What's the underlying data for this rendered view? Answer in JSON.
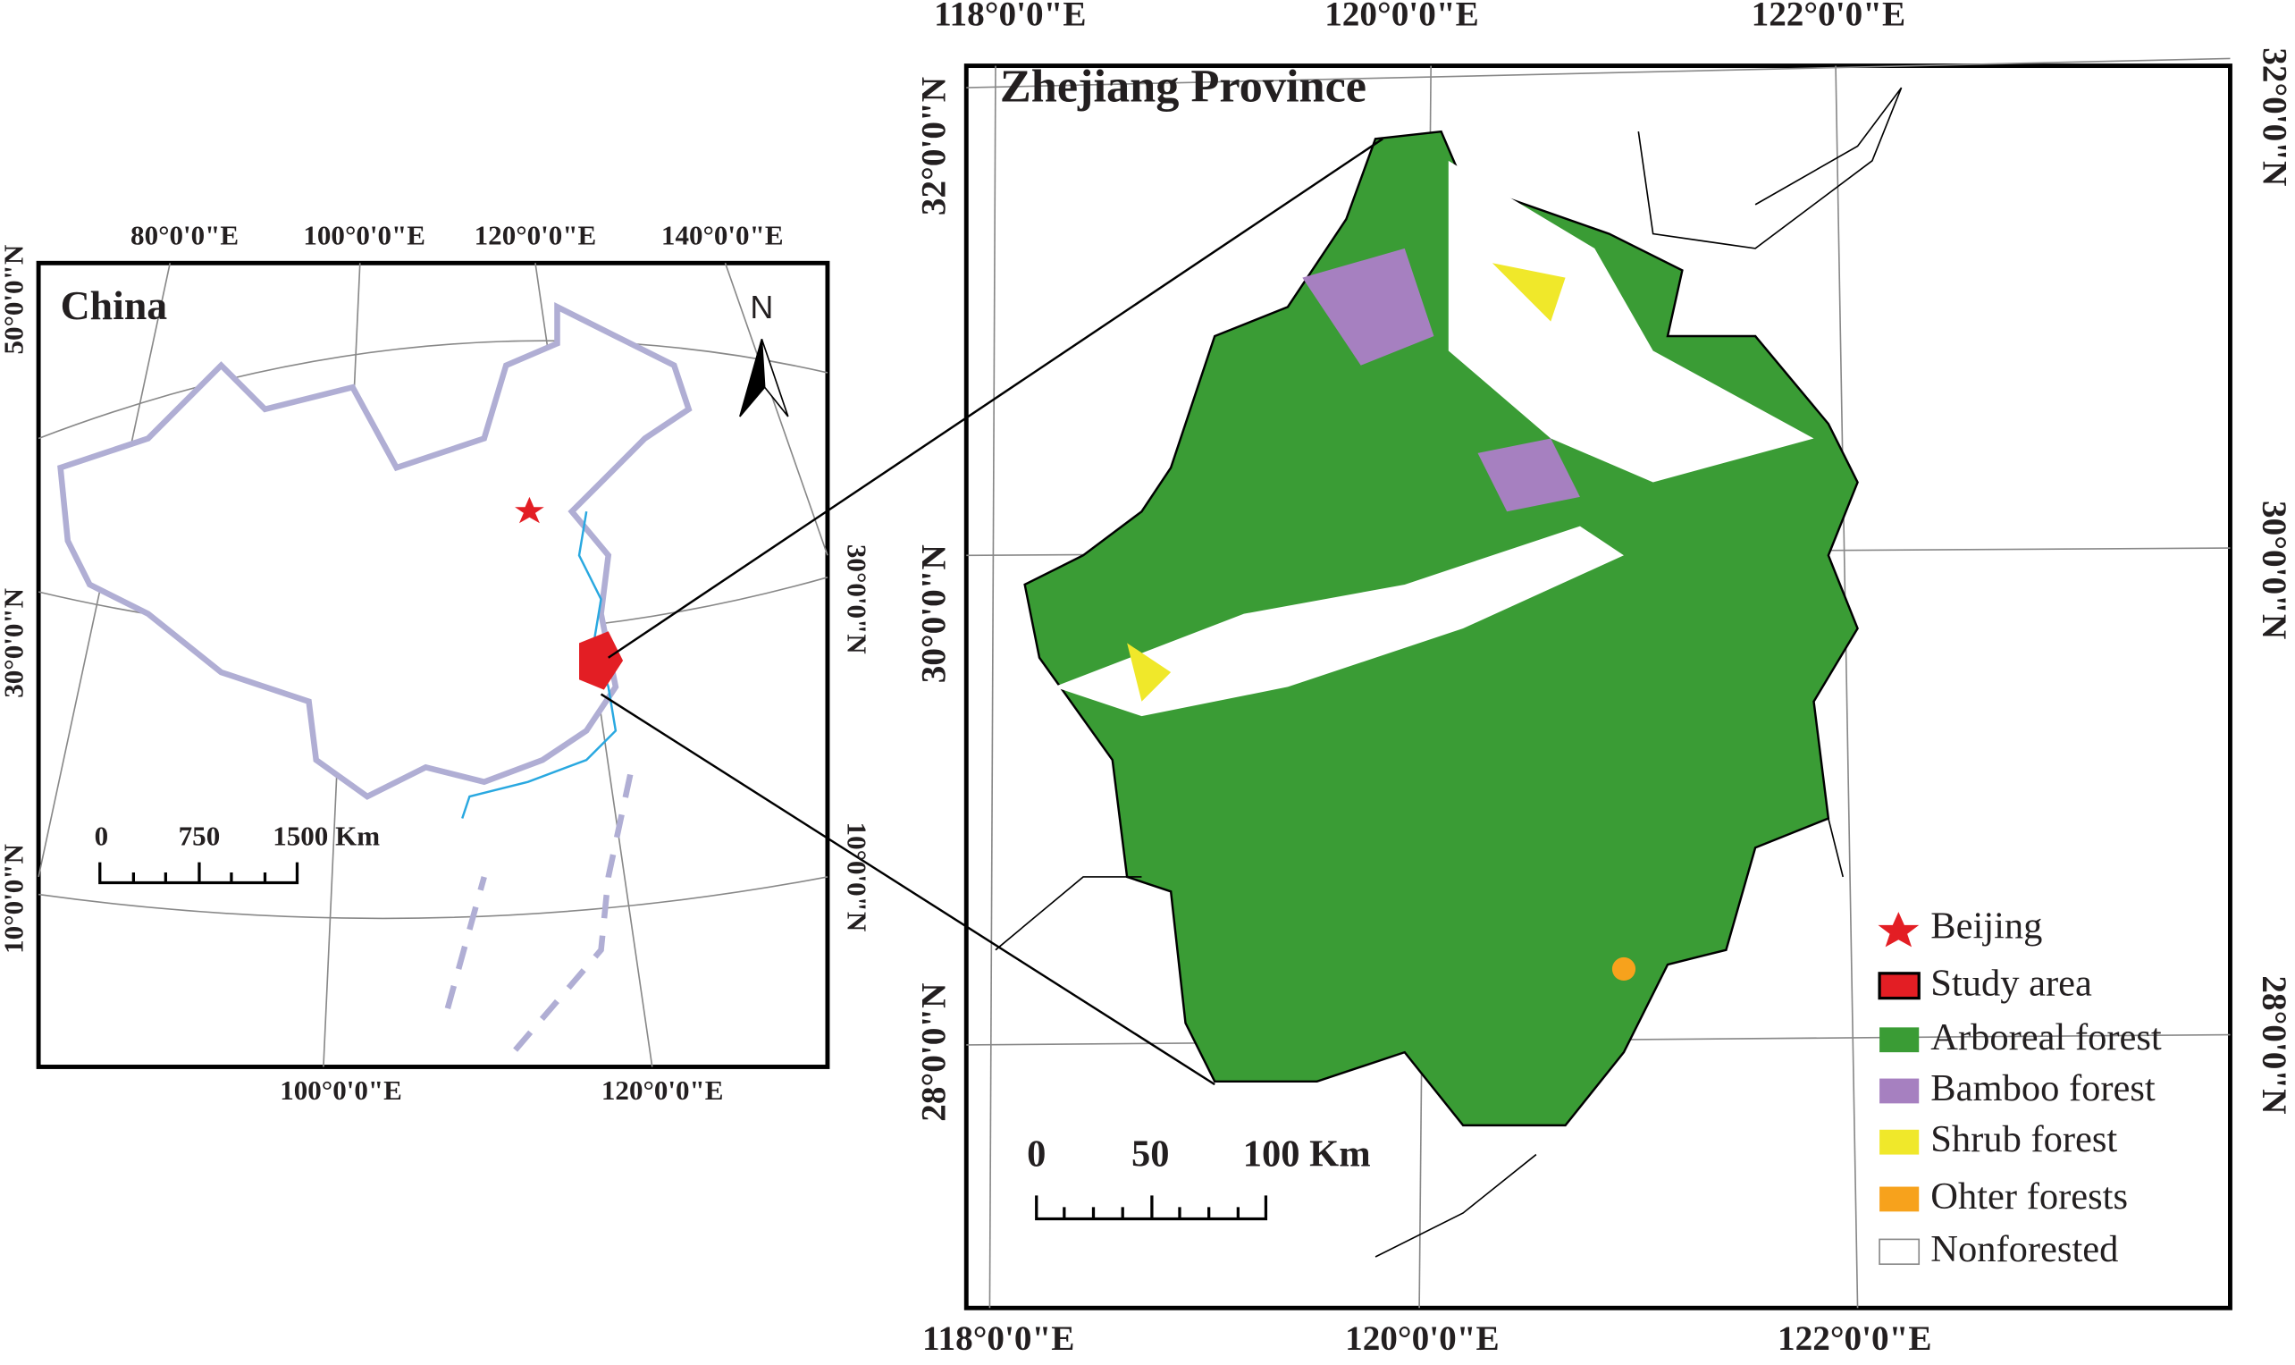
{
  "inset_map": {
    "title": "China",
    "north_arrow": "N",
    "top_labels": [
      "80°0'0\"E",
      "100°0'0\"E",
      "120°0'0\"E",
      "140°0'0\"E"
    ],
    "bottom_labels": [
      "100°0'0\"E",
      "120°0'0\"E"
    ],
    "left_labels": [
      "50°0'0\"N",
      "30°0'0\"N",
      "10°0'0\"N"
    ],
    "right_labels": [
      "30°0'0\"N",
      "10°0'0\"N"
    ],
    "scale_bar": [
      "0",
      "750",
      "1500 Km"
    ]
  },
  "main_map": {
    "title": "Zhejiang Province",
    "top_labels": [
      "118°0'0\"E",
      "120°0'0\"E",
      "122°0'0\"E"
    ],
    "bottom_labels": [
      "118°0'0\"E",
      "120°0'0\"E",
      "122°0'0\"E"
    ],
    "left_labels": [
      "32°0'0\"N",
      "30°0'0\"N",
      "28°0'0\"N"
    ],
    "right_labels": [
      "32°0'0\"N",
      "30°0'0\"N",
      "28°0'0\"N"
    ],
    "scale_bar": [
      "0",
      "50",
      "100 Km"
    ]
  },
  "legend": [
    "Beijing",
    "Study area",
    "Arboreal forest",
    "Bamboo forest",
    "Shrub forest",
    "Ohter forests",
    "Nonforested"
  ]
}
